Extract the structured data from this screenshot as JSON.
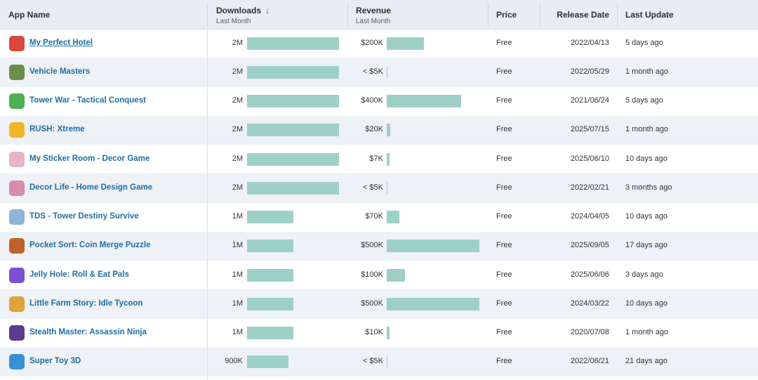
{
  "header": {
    "app_name": "App Name",
    "downloads": "Downloads",
    "downloads_sub": "Last Month",
    "revenue": "Revenue",
    "revenue_sub": "Last Month",
    "price": "Price",
    "release_date": "Release Date",
    "last_update": "Last Update",
    "sort_icon": "↓"
  },
  "max_downloads": 2000000,
  "max_revenue": 500000,
  "rows": [
    {
      "name": "My Perfect Hotel",
      "downloads": "2M",
      "downloads_value": 2000000,
      "revenue": "$200K",
      "revenue_value": 200000,
      "price": "Free",
      "release": "2022/04/13",
      "update": "5 days ago",
      "icon": "hotel-game-icon",
      "icon_color": "#d9483b"
    },
    {
      "name": "Vehicle Masters",
      "downloads": "2M",
      "downloads_value": 2000000,
      "revenue": "< $5K",
      "revenue_value": 0,
      "price": "Free",
      "release": "2022/05/29",
      "update": "1 month ago",
      "icon": "vehicle-game-icon",
      "icon_color": "#6a8f4a"
    },
    {
      "name": "Tower War - Tactical Conquest",
      "downloads": "2M",
      "downloads_value": 2000000,
      "revenue": "$400K",
      "revenue_value": 400000,
      "price": "Free",
      "release": "2021/06/24",
      "update": "5 days ago",
      "icon": "tower-war-icon",
      "icon_color": "#4caf50"
    },
    {
      "name": "RUSH: Xtreme",
      "downloads": "2M",
      "downloads_value": 2000000,
      "revenue": "$20K",
      "revenue_value": 20000,
      "price": "Free",
      "release": "2025/07/15",
      "update": "1 month ago",
      "icon": "rush-game-icon",
      "icon_color": "#f0b429"
    },
    {
      "name": "My Sticker Room - Decor Game",
      "downloads": "2M",
      "downloads_value": 2000000,
      "revenue": "$7K",
      "revenue_value": 7000,
      "price": "Free",
      "release": "2025/06/10",
      "update": "10 days ago",
      "icon": "sticker-room-icon",
      "icon_color": "#e9b3c8"
    },
    {
      "name": "Decor Life - Home Design Game",
      "downloads": "2M",
      "downloads_value": 2000000,
      "revenue": "< $5K",
      "revenue_value": 0,
      "price": "Free",
      "release": "2022/02/21",
      "update": "3 months ago",
      "icon": "decor-life-icon",
      "icon_color": "#d98bb0"
    },
    {
      "name": "TDS - Tower Destiny Survive",
      "downloads": "1M",
      "downloads_value": 1000000,
      "revenue": "$70K",
      "revenue_value": 70000,
      "price": "Free",
      "release": "2024/04/05",
      "update": "10 days ago",
      "icon": "tds-game-icon",
      "icon_color": "#8fb6d8"
    },
    {
      "name": "Pocket Sort: Coin Merge Puzzle",
      "downloads": "1M",
      "downloads_value": 1000000,
      "revenue": "$500K",
      "revenue_value": 500000,
      "price": "Free",
      "release": "2025/09/05",
      "update": "17 days ago",
      "icon": "pocket-sort-icon",
      "icon_color": "#c0612b"
    },
    {
      "name": "Jelly Hole: Roll & Eat Pals",
      "downloads": "1M",
      "downloads_value": 1000000,
      "revenue": "$100K",
      "revenue_value": 100000,
      "price": "Free",
      "release": "2025/06/06",
      "update": "3 days ago",
      "icon": "jelly-hole-icon",
      "icon_color": "#7b4fd6"
    },
    {
      "name": "Little Farm Story: Idle Tycoon",
      "downloads": "1M",
      "downloads_value": 1000000,
      "revenue": "$500K",
      "revenue_value": 500000,
      "price": "Free",
      "release": "2024/03/22",
      "update": "10 days ago",
      "icon": "farm-story-icon",
      "icon_color": "#e0a33a"
    },
    {
      "name": "Stealth Master: Assassin Ninja",
      "downloads": "1M",
      "downloads_value": 1000000,
      "revenue": "$10K",
      "revenue_value": 10000,
      "price": "Free",
      "release": "2020/07/08",
      "update": "1 month ago",
      "icon": "stealth-master-icon",
      "icon_color": "#5a3c8c"
    },
    {
      "name": "Super Toy 3D",
      "downloads": "900K",
      "downloads_value": 900000,
      "revenue": "< $5K",
      "revenue_value": 0,
      "price": "Free",
      "release": "2022/06/21",
      "update": "21 days ago",
      "icon": "super-toy-icon",
      "icon_color": "#3a8fd9"
    }
  ]
}
